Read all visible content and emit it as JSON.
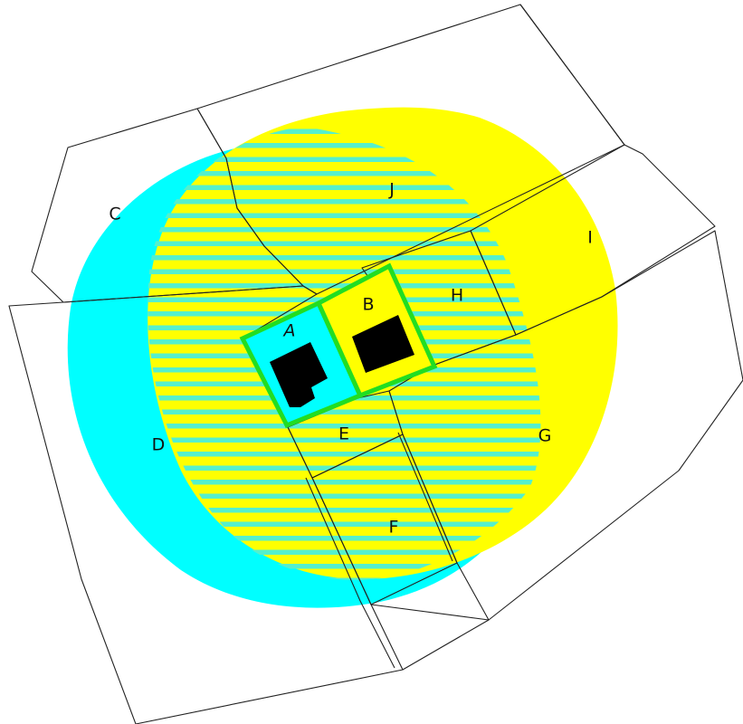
{
  "colors": {
    "background": "#ffffff",
    "zone_a": "#00ffff",
    "zone_b": "#ffff00",
    "stripe": "#55f0cc",
    "lot_outline": "#22dd22",
    "building": "#000000",
    "parcel_line": "#222222"
  },
  "labels": {
    "a": "A",
    "b": "B",
    "c": "C",
    "d": "D",
    "e": "E",
    "f": "F",
    "g": "G",
    "h": "H",
    "i": "I",
    "j": "J"
  }
}
